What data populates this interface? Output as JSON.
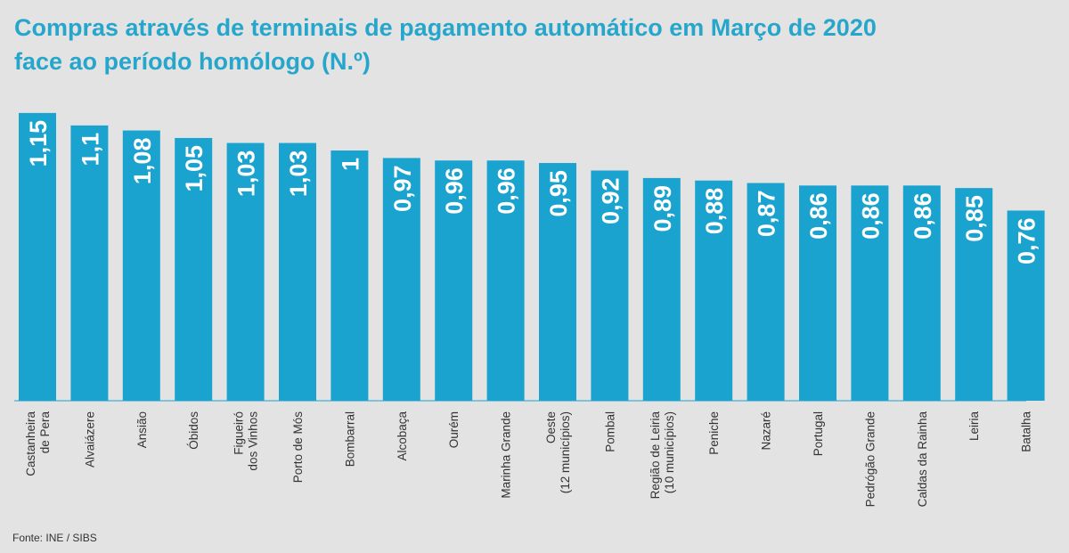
{
  "chart_data": {
    "type": "bar",
    "title_lines": [
      "Compras através de terminais de pagamento automático em Março de 2020",
      "face ao período homólogo (N.º)"
    ],
    "categories": [
      [
        "Castanheira",
        "de Pera"
      ],
      [
        "Alvaiázere"
      ],
      [
        "Ansião"
      ],
      [
        "Óbidos"
      ],
      [
        "Figueiró",
        "dos Vinhos"
      ],
      [
        "Porto de Mós"
      ],
      [
        "Bombarral"
      ],
      [
        "Alcobaça"
      ],
      [
        "Ourém"
      ],
      [
        "Marinha Grande"
      ],
      [
        "Oeste",
        "(12 municípios)"
      ],
      [
        "Pombal"
      ],
      [
        "Região de Leiria",
        "(10 municípios)"
      ],
      [
        "Peniche"
      ],
      [
        "Nazaré"
      ],
      [
        "Portugal"
      ],
      [
        "Pedrógão Grande"
      ],
      [
        "Caldas da Rainha"
      ],
      [
        "Leiria"
      ],
      [
        "Batalha"
      ]
    ],
    "values": [
      1.15,
      1.1,
      1.08,
      1.05,
      1.03,
      1.03,
      1,
      0.97,
      0.96,
      0.96,
      0.95,
      0.92,
      0.89,
      0.88,
      0.87,
      0.86,
      0.86,
      0.86,
      0.85,
      0.76
    ],
    "value_labels": [
      "1,15",
      "1,1",
      "1,08",
      "1,05",
      "1,03",
      "1,03",
      "1",
      "0,97",
      "0,96",
      "0,96",
      "0,95",
      "0,92",
      "0,89",
      "0,88",
      "0,87",
      "0,86",
      "0,86",
      "0,86",
      "0,85",
      "0,76"
    ],
    "bar_color": "#1aa3cf",
    "label_color": "#ffffff",
    "grid": false,
    "legend": "none"
  },
  "source": "Fonte: INE / SIBS"
}
